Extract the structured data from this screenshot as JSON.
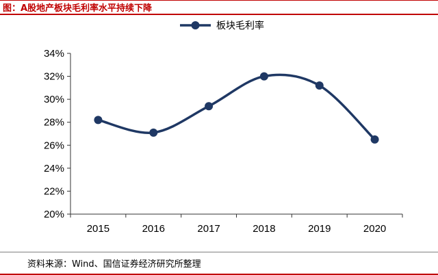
{
  "header": {
    "title": "图：A股地产板块毛利率水平持续下降"
  },
  "footer": {
    "source": "资料来源：Wind、国信证券经济研究所整理"
  },
  "colors": {
    "series": "#1f3864",
    "title": "#c00000",
    "axis": "#333333",
    "text": "#000000"
  },
  "chart_data": {
    "type": "line",
    "title": "",
    "xlabel": "",
    "ylabel": "",
    "categories": [
      "2015",
      "2016",
      "2017",
      "2018",
      "2019",
      "2020"
    ],
    "series": [
      {
        "name": "板块毛利率",
        "values": [
          28.2,
          27.1,
          29.4,
          32.0,
          31.2,
          26.5
        ]
      }
    ],
    "ylim": [
      20,
      34
    ],
    "yticks": [
      20,
      22,
      24,
      26,
      28,
      30,
      32,
      34
    ],
    "ytick_labels": [
      "20%",
      "22%",
      "24%",
      "26%",
      "28%",
      "30%",
      "32%",
      "34%"
    ],
    "smooth": true,
    "markers": "circle",
    "grid": false,
    "legend": "top-center"
  }
}
